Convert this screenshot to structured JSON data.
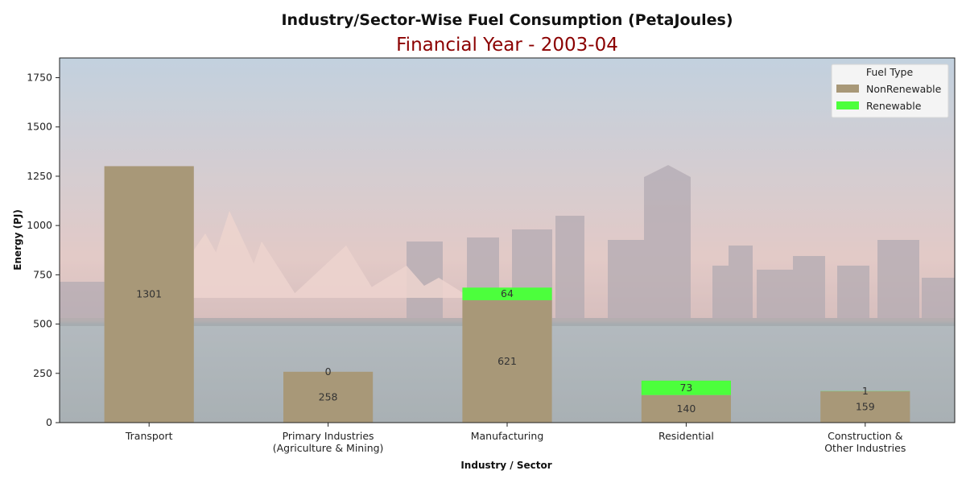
{
  "chart_data": {
    "type": "bar",
    "stacked": true,
    "title": "Industry/Sector-Wise Fuel Consumption (PetaJoules)",
    "subtitle": "Financial Year - 2003-04",
    "xlabel": "Industry / Sector",
    "ylabel": "Energy (PJ)",
    "categories": [
      [
        "Transport"
      ],
      [
        "Primary Industries",
        "(Agriculture & Mining)"
      ],
      [
        "Manufacturing"
      ],
      [
        "Residential"
      ],
      [
        "Construction &",
        "Other Industries"
      ]
    ],
    "series": [
      {
        "name": "NonRenewable",
        "color": "#a89878",
        "values": [
          1301,
          258,
          621,
          140,
          159
        ]
      },
      {
        "name": "Renewable",
        "color": "#4cff3c",
        "values": [
          null,
          0,
          64,
          73,
          1
        ]
      }
    ],
    "ylim": [
      0,
      1850
    ],
    "yticks": [
      0,
      250,
      500,
      750,
      1000,
      1250,
      1500,
      1750
    ],
    "legend": {
      "title": "Fuel Type",
      "placement": "top-right"
    },
    "background_colors": {
      "sky": "#b8c8d6",
      "water": "#8f9aa0",
      "overlay": "#ffffff"
    },
    "grid": false
  }
}
